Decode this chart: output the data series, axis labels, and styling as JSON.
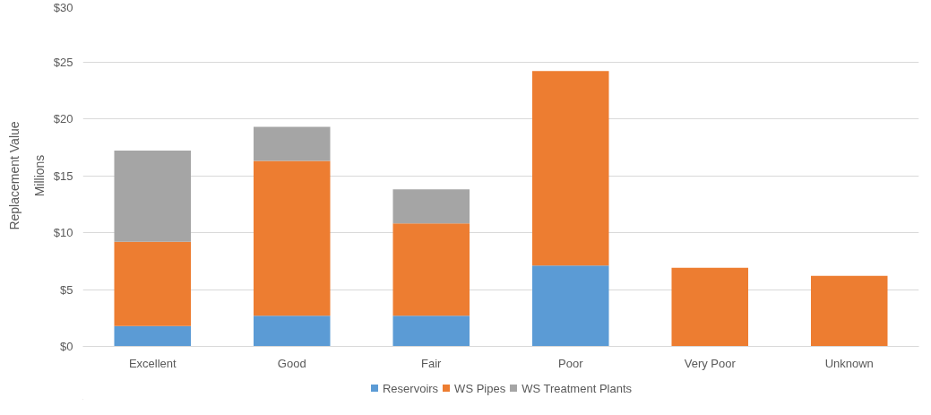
{
  "chart_data": {
    "type": "bar",
    "stacked": true,
    "ylabel": "Replacement Value",
    "annotations": [
      "Millions"
    ],
    "categories": [
      "Excellent",
      "Good",
      "Fair",
      "Poor",
      "Very Poor",
      "Unknown"
    ],
    "series": [
      {
        "name": "Reservoirs",
        "color": "#5b9bd5",
        "values": [
          1.8,
          2.7,
          2.7,
          7.1,
          null,
          null
        ]
      },
      {
        "name": "WS Pipes",
        "color": "#ed7d31",
        "values": [
          7.4,
          13.6,
          8.1,
          17.1,
          6.9,
          6.2
        ]
      },
      {
        "name": "WS Treatment Plants",
        "color": "#a5a5a5",
        "values": [
          8.0,
          3.0,
          3.0,
          null,
          null,
          null
        ]
      }
    ],
    "ylim": [
      0,
      30
    ],
    "yticks": [
      {
        "value": 0,
        "label": "$0"
      },
      {
        "value": 5,
        "label": "$5"
      },
      {
        "value": 10,
        "label": "$10"
      },
      {
        "value": 15,
        "label": "$15"
      },
      {
        "value": 20,
        "label": "$20"
      },
      {
        "value": 25,
        "label": "$25"
      },
      {
        "value": 30,
        "label": "$30"
      }
    ],
    "grid": "y",
    "legend": "bottom"
  }
}
